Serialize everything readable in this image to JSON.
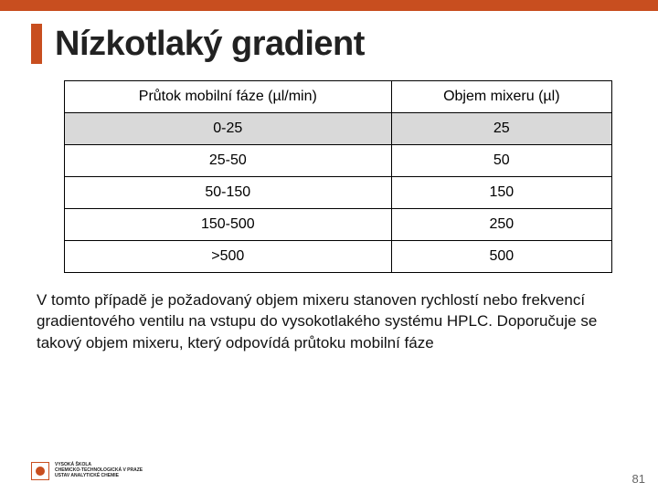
{
  "accent_color": "#c84e1f",
  "background_color": "#ffffff",
  "title": "Nízkotlaký gradient",
  "table": {
    "columns": [
      "Průtok mobilní fáze (µl/min)",
      "Objem mixeru (µl)"
    ],
    "rows": [
      {
        "cells": [
          "0-25",
          "25"
        ],
        "highlight": true
      },
      {
        "cells": [
          "25-50",
          "50"
        ],
        "highlight": false
      },
      {
        "cells": [
          "50-150",
          "150"
        ],
        "highlight": false
      },
      {
        "cells": [
          "150-500",
          "250"
        ],
        "highlight": false
      },
      {
        "cells": [
          ">500",
          "500"
        ],
        "highlight": false
      }
    ],
    "header_bg": "#ffffff",
    "highlight_bg": "#d9d9d9",
    "border_color": "#000000",
    "font_size": 16
  },
  "body_text": "V tomto případě je požadovaný objem mixeru stanoven rychlostí nebo frekvencí gradientového ventilu na vstupu do vysokotlakého systému HPLC. Doporučuje se takový objem mixeru, který odpovídá průtoku mobilní fáze",
  "page_number": "81",
  "logo_lines": [
    "VYSOKÁ ŠKOLA",
    "CHEMICKO-TECHNOLOGICKÁ V PRAZE",
    "USTAV ANALYTICKÉ CHEMIE"
  ]
}
